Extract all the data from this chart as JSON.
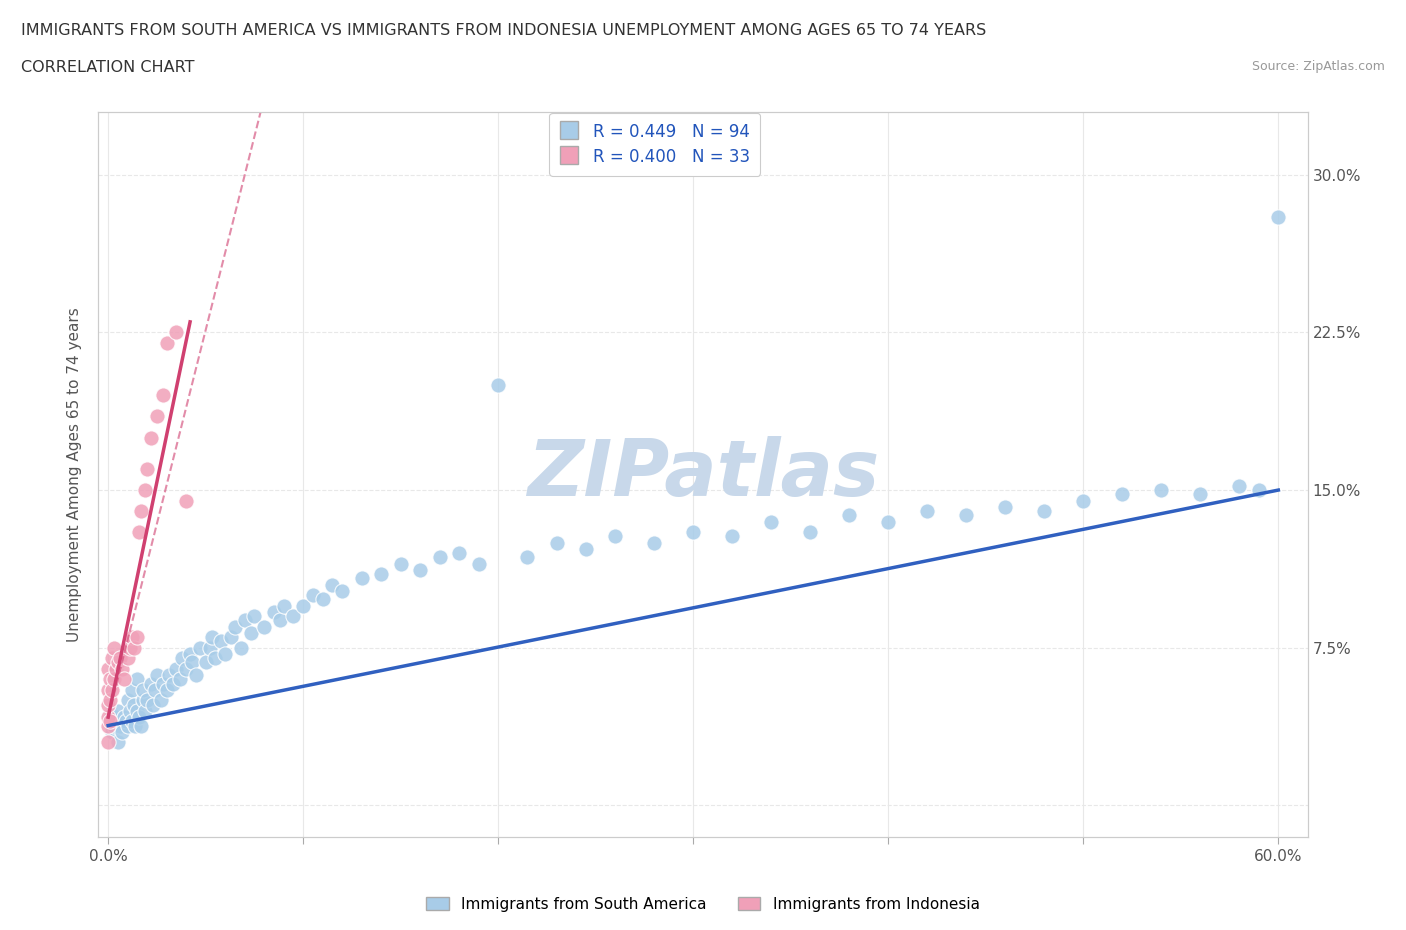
{
  "title_line1": "IMMIGRANTS FROM SOUTH AMERICA VS IMMIGRANTS FROM INDONESIA UNEMPLOYMENT AMONG AGES 65 TO 74 YEARS",
  "title_line2": "CORRELATION CHART",
  "source_text": "Source: ZipAtlas.com",
  "ylabel": "Unemployment Among Ages 65 to 74 years",
  "xlim": [
    0.0,
    0.6
  ],
  "ylim": [
    -0.01,
    0.32
  ],
  "r_south_america": 0.449,
  "n_south_america": 94,
  "r_indonesia": 0.4,
  "n_indonesia": 33,
  "color_south_america": "#a8cce8",
  "color_indonesia": "#f0a0b8",
  "trendline_color_south_america": "#3060c0",
  "trendline_color_indonesia": "#d04070",
  "legend_label_south_america": "Immigrants from South America",
  "legend_label_indonesia": "Immigrants from Indonesia",
  "watermark": "ZIPatlas",
  "watermark_color": "#c8d8ea",
  "background_color": "#ffffff",
  "grid_color": "#e8e8e8",
  "sa_x": [
    0.001,
    0.002,
    0.003,
    0.004,
    0.005,
    0.005,
    0.006,
    0.007,
    0.008,
    0.009,
    0.01,
    0.01,
    0.011,
    0.012,
    0.012,
    0.013,
    0.014,
    0.015,
    0.015,
    0.016,
    0.017,
    0.018,
    0.018,
    0.019,
    0.02,
    0.022,
    0.023,
    0.024,
    0.025,
    0.027,
    0.028,
    0.03,
    0.031,
    0.033,
    0.035,
    0.037,
    0.038,
    0.04,
    0.042,
    0.043,
    0.045,
    0.047,
    0.05,
    0.052,
    0.053,
    0.055,
    0.058,
    0.06,
    0.063,
    0.065,
    0.068,
    0.07,
    0.073,
    0.075,
    0.08,
    0.085,
    0.088,
    0.09,
    0.095,
    0.1,
    0.105,
    0.11,
    0.115,
    0.12,
    0.13,
    0.14,
    0.15,
    0.16,
    0.17,
    0.18,
    0.19,
    0.2,
    0.215,
    0.23,
    0.245,
    0.26,
    0.28,
    0.3,
    0.32,
    0.34,
    0.36,
    0.38,
    0.4,
    0.42,
    0.44,
    0.46,
    0.48,
    0.5,
    0.52,
    0.54,
    0.56,
    0.58,
    0.59,
    0.6
  ],
  "sa_y": [
    0.04,
    0.035,
    0.038,
    0.042,
    0.03,
    0.045,
    0.038,
    0.035,
    0.042,
    0.04,
    0.038,
    0.05,
    0.045,
    0.04,
    0.055,
    0.048,
    0.038,
    0.045,
    0.06,
    0.042,
    0.038,
    0.05,
    0.055,
    0.045,
    0.05,
    0.058,
    0.048,
    0.055,
    0.062,
    0.05,
    0.058,
    0.055,
    0.062,
    0.058,
    0.065,
    0.06,
    0.07,
    0.065,
    0.072,
    0.068,
    0.062,
    0.075,
    0.068,
    0.075,
    0.08,
    0.07,
    0.078,
    0.072,
    0.08,
    0.085,
    0.075,
    0.088,
    0.082,
    0.09,
    0.085,
    0.092,
    0.088,
    0.095,
    0.09,
    0.095,
    0.1,
    0.098,
    0.105,
    0.102,
    0.108,
    0.11,
    0.115,
    0.112,
    0.118,
    0.12,
    0.115,
    0.2,
    0.118,
    0.125,
    0.122,
    0.128,
    0.125,
    0.13,
    0.128,
    0.135,
    0.13,
    0.138,
    0.135,
    0.14,
    0.138,
    0.142,
    0.14,
    0.145,
    0.148,
    0.15,
    0.148,
    0.152,
    0.15,
    0.28
  ],
  "in_x": [
    0.0,
    0.0,
    0.0,
    0.0,
    0.0,
    0.0,
    0.001,
    0.001,
    0.001,
    0.002,
    0.002,
    0.003,
    0.003,
    0.004,
    0.005,
    0.006,
    0.007,
    0.008,
    0.01,
    0.011,
    0.012,
    0.013,
    0.015,
    0.016,
    0.017,
    0.019,
    0.02,
    0.022,
    0.025,
    0.028,
    0.03,
    0.035,
    0.04
  ],
  "in_y": [
    0.03,
    0.038,
    0.042,
    0.048,
    0.055,
    0.065,
    0.04,
    0.05,
    0.06,
    0.055,
    0.07,
    0.06,
    0.075,
    0.065,
    0.068,
    0.07,
    0.065,
    0.06,
    0.07,
    0.075,
    0.08,
    0.075,
    0.08,
    0.13,
    0.14,
    0.15,
    0.16,
    0.175,
    0.185,
    0.195,
    0.22,
    0.225,
    0.145
  ],
  "trendline_sa_x0": 0.0,
  "trendline_sa_y0": 0.038,
  "trendline_sa_x1": 0.6,
  "trendline_sa_y1": 0.15,
  "trendline_in_x0": 0.0,
  "trendline_in_y0": 0.042,
  "trendline_in_x1": 0.042,
  "trendline_in_y1": 0.23
}
